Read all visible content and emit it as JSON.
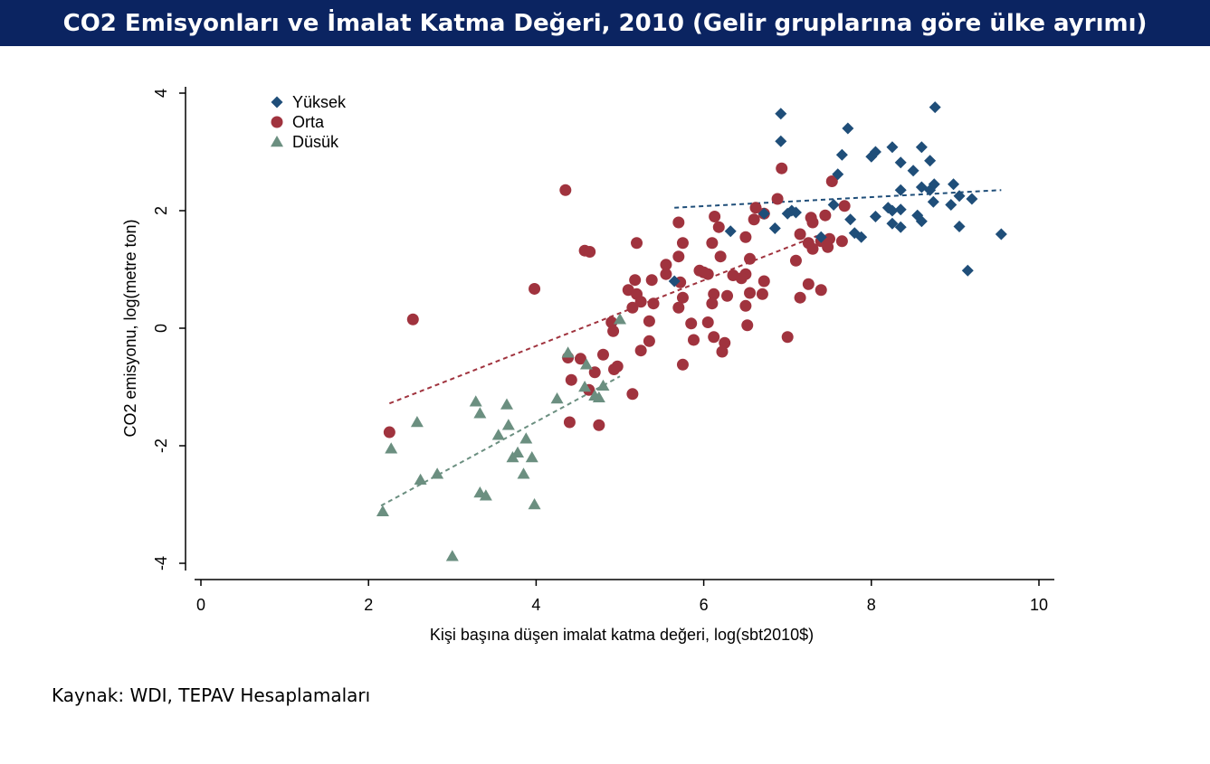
{
  "header": {
    "title": "CO2 Emisyonları ve İmalat Katma Değeri, 2010 (Gelir gruplarına göre ülke ayrımı)"
  },
  "footer": {
    "source": "Kaynak: WDI, TEPAV Hesaplamaları"
  },
  "colors": {
    "title_bg": "#0b2461",
    "high": "#1f4e79",
    "middle": "#a0333e",
    "low": "#6b8f80"
  },
  "chart_data": {
    "type": "scatter",
    "xlabel": "Kişi başına düşen imalat katma değeri, log(sbt2010$)",
    "ylabel": "CO2 emisyonu, log(metre ton)",
    "xlim": [
      0,
      10
    ],
    "ylim": [
      -4,
      4
    ],
    "xticks": [
      "0",
      "2",
      "4",
      "6",
      "8",
      "10"
    ],
    "yticks": [
      "-4",
      "-2",
      "0",
      "2",
      "4"
    ],
    "grid": false,
    "legend_position": "top-left",
    "series": [
      {
        "name": "Yüksek",
        "key": "high",
        "marker": "diamond",
        "points": [
          [
            6.92,
            3.65
          ],
          [
            6.92,
            3.18
          ],
          [
            7.72,
            3.4
          ],
          [
            8.76,
            3.76
          ],
          [
            7.65,
            2.95
          ],
          [
            8.0,
            2.92
          ],
          [
            8.05,
            3.0
          ],
          [
            8.25,
            3.08
          ],
          [
            8.6,
            3.08
          ],
          [
            8.35,
            2.82
          ],
          [
            8.5,
            2.68
          ],
          [
            8.7,
            2.85
          ],
          [
            7.6,
            2.62
          ],
          [
            8.6,
            2.4
          ],
          [
            8.7,
            2.35
          ],
          [
            8.75,
            2.45
          ],
          [
            8.98,
            2.45
          ],
          [
            9.05,
            2.25
          ],
          [
            9.2,
            2.2
          ],
          [
            8.35,
            2.35
          ],
          [
            8.74,
            2.15
          ],
          [
            8.95,
            2.1
          ],
          [
            7.55,
            2.1
          ],
          [
            7.1,
            1.97
          ],
          [
            7.05,
            2.0
          ],
          [
            7.0,
            1.95
          ],
          [
            6.72,
            1.95
          ],
          [
            8.2,
            2.05
          ],
          [
            8.25,
            2.0
          ],
          [
            8.35,
            2.02
          ],
          [
            8.05,
            1.9
          ],
          [
            8.55,
            1.92
          ],
          [
            8.6,
            1.82
          ],
          [
            8.25,
            1.78
          ],
          [
            8.35,
            1.72
          ],
          [
            7.75,
            1.85
          ],
          [
            6.32,
            1.65
          ],
          [
            6.85,
            1.7
          ],
          [
            7.8,
            1.62
          ],
          [
            7.88,
            1.55
          ],
          [
            7.4,
            1.55
          ],
          [
            9.05,
            1.73
          ],
          [
            9.55,
            1.6
          ],
          [
            9.15,
            0.98
          ],
          [
            5.65,
            0.8
          ]
        ]
      },
      {
        "name": "Orta",
        "key": "middle",
        "marker": "circle",
        "points": [
          [
            6.93,
            2.72
          ],
          [
            4.35,
            2.35
          ],
          [
            7.53,
            2.5
          ],
          [
            6.88,
            2.2
          ],
          [
            7.68,
            2.08
          ],
          [
            6.62,
            2.05
          ],
          [
            6.72,
            1.95
          ],
          [
            6.13,
            1.9
          ],
          [
            7.45,
            1.92
          ],
          [
            7.28,
            1.88
          ],
          [
            5.7,
            1.8
          ],
          [
            6.6,
            1.85
          ],
          [
            6.18,
            1.72
          ],
          [
            7.3,
            1.8
          ],
          [
            7.15,
            1.6
          ],
          [
            6.5,
            1.55
          ],
          [
            5.2,
            1.45
          ],
          [
            5.75,
            1.45
          ],
          [
            6.1,
            1.45
          ],
          [
            7.25,
            1.45
          ],
          [
            7.4,
            1.48
          ],
          [
            7.5,
            1.52
          ],
          [
            7.48,
            1.38
          ],
          [
            7.3,
            1.35
          ],
          [
            7.65,
            1.48
          ],
          [
            4.58,
            1.32
          ],
          [
            4.64,
            1.3
          ],
          [
            5.7,
            1.22
          ],
          [
            6.2,
            1.22
          ],
          [
            6.55,
            1.18
          ],
          [
            7.1,
            1.15
          ],
          [
            5.55,
            1.08
          ],
          [
            5.95,
            0.98
          ],
          [
            6.05,
            0.92
          ],
          [
            6.0,
            0.95
          ],
          [
            6.35,
            0.9
          ],
          [
            6.5,
            0.92
          ],
          [
            6.45,
            0.85
          ],
          [
            5.55,
            0.92
          ],
          [
            5.38,
            0.82
          ],
          [
            5.72,
            0.78
          ],
          [
            5.18,
            0.82
          ],
          [
            6.72,
            0.8
          ],
          [
            7.25,
            0.75
          ],
          [
            3.98,
            0.67
          ],
          [
            5.1,
            0.65
          ],
          [
            5.2,
            0.58
          ],
          [
            5.75,
            0.52
          ],
          [
            6.12,
            0.58
          ],
          [
            6.55,
            0.6
          ],
          [
            6.7,
            0.58
          ],
          [
            7.15,
            0.52
          ],
          [
            7.4,
            0.65
          ],
          [
            6.28,
            0.55
          ],
          [
            5.25,
            0.45
          ],
          [
            5.4,
            0.42
          ],
          [
            6.1,
            0.42
          ],
          [
            5.15,
            0.35
          ],
          [
            5.7,
            0.35
          ],
          [
            6.5,
            0.38
          ],
          [
            4.9,
            0.1
          ],
          [
            5.35,
            0.12
          ],
          [
            5.85,
            0.08
          ],
          [
            6.05,
            0.1
          ],
          [
            6.52,
            0.05
          ],
          [
            4.92,
            -0.05
          ],
          [
            6.12,
            -0.15
          ],
          [
            5.88,
            -0.2
          ],
          [
            5.35,
            -0.22
          ],
          [
            6.25,
            -0.25
          ],
          [
            6.22,
            -0.4
          ],
          [
            7.0,
            -0.15
          ],
          [
            5.25,
            -0.38
          ],
          [
            4.8,
            -0.45
          ],
          [
            4.38,
            -0.5
          ],
          [
            4.53,
            -0.52
          ],
          [
            5.75,
            -0.62
          ],
          [
            4.97,
            -0.65
          ],
          [
            4.93,
            -0.7
          ],
          [
            4.7,
            -0.75
          ],
          [
            4.42,
            -0.88
          ],
          [
            4.63,
            -1.05
          ],
          [
            5.15,
            -1.12
          ],
          [
            4.4,
            -1.6
          ],
          [
            4.75,
            -1.65
          ],
          [
            2.25,
            -1.77
          ],
          [
            2.53,
            0.15
          ]
        ]
      },
      {
        "name": "Düsük",
        "key": "low",
        "marker": "triangle",
        "points": [
          [
            5.0,
            0.15
          ],
          [
            4.38,
            -0.42
          ],
          [
            4.6,
            -0.62
          ],
          [
            4.58,
            -1.0
          ],
          [
            4.8,
            -0.98
          ],
          [
            4.7,
            -1.15
          ],
          [
            4.75,
            -1.18
          ],
          [
            4.25,
            -1.2
          ],
          [
            3.28,
            -1.25
          ],
          [
            3.65,
            -1.3
          ],
          [
            3.33,
            -1.45
          ],
          [
            2.58,
            -1.6
          ],
          [
            3.67,
            -1.65
          ],
          [
            3.55,
            -1.82
          ],
          [
            3.88,
            -1.88
          ],
          [
            2.27,
            -2.05
          ],
          [
            3.78,
            -2.12
          ],
          [
            3.72,
            -2.2
          ],
          [
            3.95,
            -2.2
          ],
          [
            3.85,
            -2.48
          ],
          [
            2.82,
            -2.48
          ],
          [
            2.62,
            -2.58
          ],
          [
            3.33,
            -2.8
          ],
          [
            3.4,
            -2.85
          ],
          [
            3.98,
            -3.0
          ],
          [
            2.17,
            -3.12
          ],
          [
            3.0,
            -3.88
          ]
        ]
      }
    ],
    "fit_lines": [
      {
        "key": "high",
        "x": [
          5.65,
          9.55
        ],
        "y": [
          2.05,
          2.35
        ]
      },
      {
        "key": "middle",
        "x": [
          2.25,
          7.35
        ],
        "y": [
          -1.28,
          1.57
        ]
      },
      {
        "key": "low",
        "x": [
          2.15,
          5.0
        ],
        "y": [
          -3.02,
          -0.82
        ]
      }
    ]
  }
}
